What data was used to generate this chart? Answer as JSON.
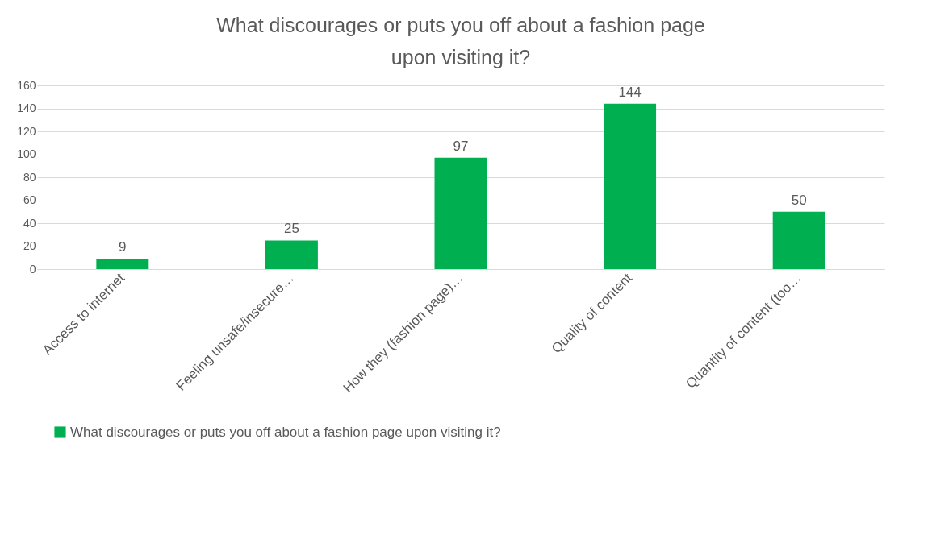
{
  "chart_data": {
    "type": "bar",
    "title": "What discourages or puts you off about a fashion page upon visiting it?",
    "categories": [
      "Access to internet",
      "Feeling unsafe/insecure…",
      "How they (fashion page)…",
      "Quality of content",
      "Quantity of content (too…"
    ],
    "series": [
      {
        "name": "What discourages or puts you off about a fashion page upon visiting it?",
        "color": "#00b050",
        "values": [
          9,
          25,
          97,
          144,
          50
        ]
      }
    ],
    "ylim": [
      0,
      160
    ],
    "yticks": [
      0,
      20,
      40,
      60,
      80,
      100,
      120,
      140,
      160
    ],
    "grid": "y",
    "legend": "bottom",
    "data_labels": true
  }
}
